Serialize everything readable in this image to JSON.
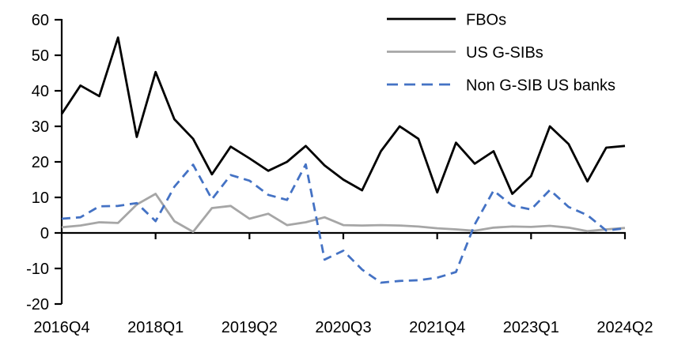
{
  "chart_data": {
    "type": "line",
    "title": "",
    "xlabel": "",
    "ylabel": "",
    "ylim": [
      -20,
      60
    ],
    "y_ticks": [
      60,
      50,
      40,
      30,
      20,
      10,
      0,
      -10,
      -20
    ],
    "grid": "off",
    "legend_position": "top-right",
    "x_tick_indices": [
      0,
      5,
      10,
      15,
      20,
      25,
      30
    ],
    "x_tick_labels_shown": [
      "2016Q4",
      "2018Q1",
      "2019Q2",
      "2020Q3",
      "2021Q4",
      "2023Q1",
      "2024Q2"
    ],
    "categories": [
      "2016Q4",
      "2017Q1",
      "2017Q2",
      "2017Q3",
      "2017Q4",
      "2018Q1",
      "2018Q2",
      "2018Q3",
      "2018Q4",
      "2019Q1",
      "2019Q2",
      "2019Q3",
      "2019Q4",
      "2020Q1",
      "2020Q2",
      "2020Q3",
      "2020Q4",
      "2021Q1",
      "2021Q2",
      "2021Q3",
      "2021Q4",
      "2022Q1",
      "2022Q2",
      "2022Q3",
      "2022Q4",
      "2023Q1",
      "2023Q2",
      "2023Q3",
      "2023Q4",
      "2024Q1",
      "2024Q2"
    ],
    "series": [
      {
        "name": "FBOs",
        "color": "#000000",
        "style": "solid",
        "values": [
          33.5,
          41.5,
          38.5,
          55,
          27,
          45.3,
          32,
          26.5,
          16.5,
          24.3,
          21,
          17.5,
          20,
          24.5,
          19,
          15,
          12,
          23,
          30,
          26.5,
          11.4,
          25.4,
          19.5,
          23,
          11,
          16,
          30,
          25,
          14.5,
          24,
          24.5
        ]
      },
      {
        "name": "US G-SIBs",
        "color": "#a6a6a6",
        "style": "solid",
        "values": [
          1.6,
          2.1,
          3.0,
          2.8,
          8.0,
          11.0,
          3.3,
          0.3,
          7.0,
          7.6,
          4.0,
          5.4,
          2.2,
          3.0,
          4.4,
          2.2,
          2.1,
          2.2,
          2.1,
          1.8,
          1.3,
          1.0,
          0.6,
          1.5,
          1.8,
          1.7,
          2.0,
          1.5,
          0.5,
          1.0,
          1.4
        ]
      },
      {
        "name": "Non G-SIB US banks",
        "color": "#4472c4",
        "style": "dashed",
        "values": [
          4.0,
          4.4,
          7.5,
          7.6,
          8.4,
          3.3,
          13.0,
          19.2,
          9.5,
          16.3,
          14.7,
          10.7,
          9.3,
          19.3,
          -7.5,
          -5.0,
          -10.3,
          -14.0,
          -13.5,
          -13.3,
          -12.6,
          -11.0,
          2.4,
          11.9,
          7.7,
          6.6,
          12.1,
          7.3,
          5.0,
          0.7,
          1.3
        ]
      }
    ]
  }
}
